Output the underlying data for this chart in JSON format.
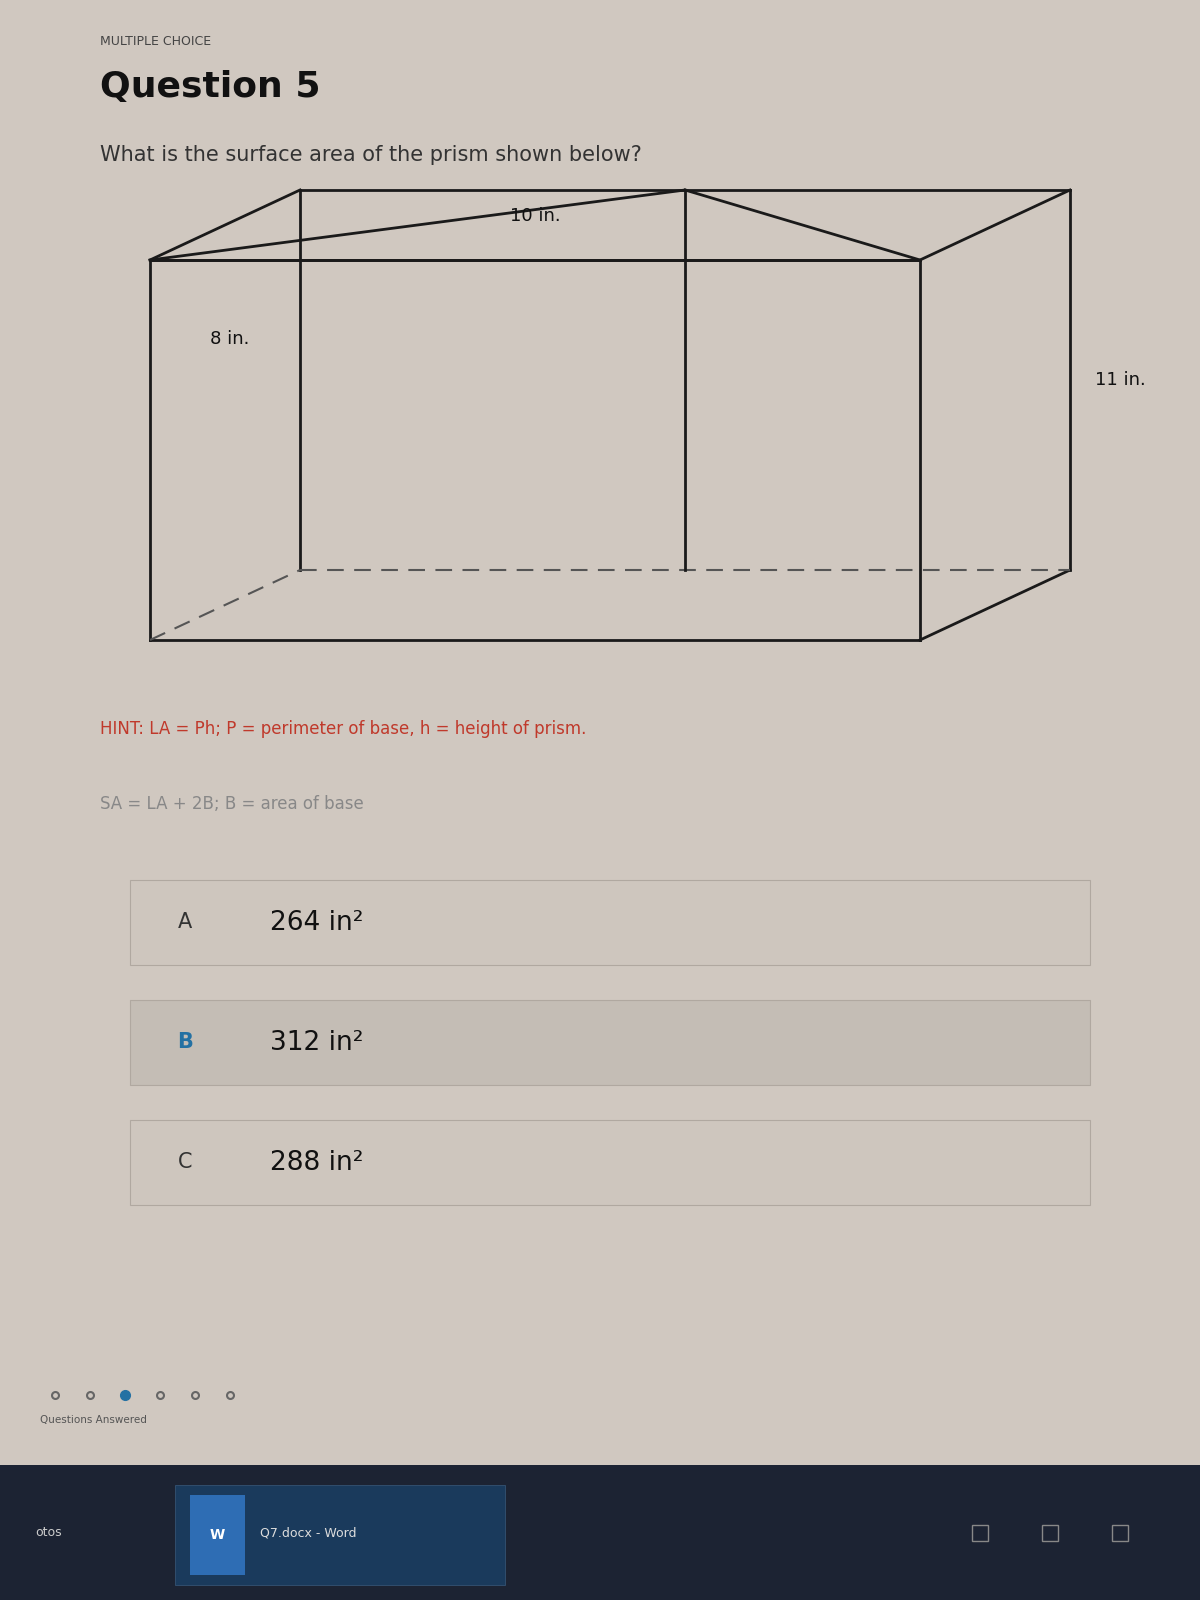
{
  "title_label": "MULTIPLE CHOICE",
  "question_label": "Question 5",
  "question_text": "What is the surface area of the prism shown below?",
  "dim_length": "10 in.",
  "dim_width": "8 in.",
  "dim_height": "11 in.",
  "hint_line1": "HINT: LA = Ph; P = perimeter of base, h = height of prism.",
  "hint_line2": "SA = LA + 2B; B = area of base",
  "hint_color": "#c0392b",
  "hint2_color": "#888888",
  "options": [
    {
      "label": "A",
      "text": "264 in²",
      "label_color": "#333333"
    },
    {
      "label": "B",
      "text": "312 in²",
      "label_color": "#2471a3"
    },
    {
      "label": "C",
      "text": "288 in²",
      "label_color": "#333333"
    }
  ],
  "bg_color": "#c8c0b8",
  "taskbar_color": "#1a1a2e"
}
